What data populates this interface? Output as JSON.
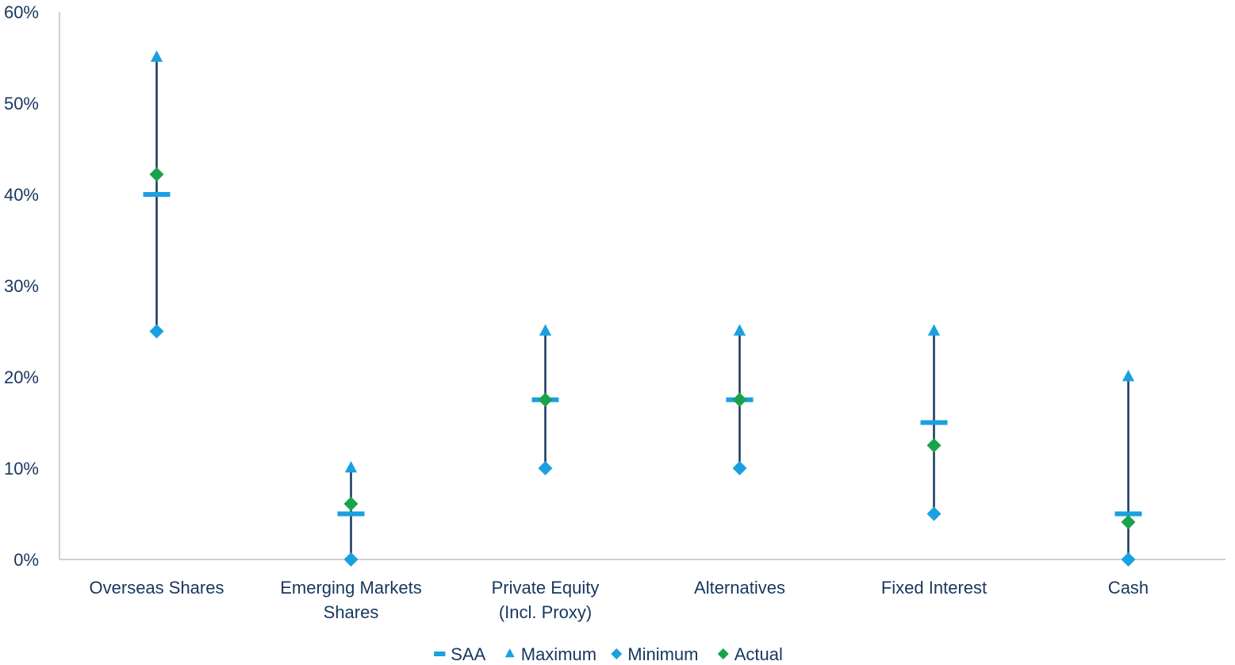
{
  "chart_data": {
    "type": "scatter",
    "categories": [
      [
        "Overseas Shares"
      ],
      [
        "Emerging Markets",
        "Shares"
      ],
      [
        "Private Equity",
        "(Incl. Proxy)"
      ],
      [
        "Alternatives"
      ],
      [
        "Fixed Interest"
      ],
      [
        "Cash"
      ]
    ],
    "series": [
      {
        "name": "SAA",
        "values": [
          40,
          5,
          17.5,
          17.5,
          15,
          5
        ]
      },
      {
        "name": "Maximum",
        "values": [
          55,
          10,
          25,
          25,
          25,
          20
        ]
      },
      {
        "name": "Minimum",
        "values": [
          25,
          0,
          10,
          10,
          5,
          0
        ]
      },
      {
        "name": "Actual",
        "values": [
          42.2,
          6.1,
          17.5,
          17.5,
          12.5,
          4.1
        ]
      }
    ],
    "yticks": [
      "0%",
      "10%",
      "20%",
      "30%",
      "40%",
      "50%",
      "60%"
    ],
    "ylim": [
      0,
      60
    ],
    "grid": false,
    "legend_position": "bottom",
    "colors": {
      "SAA": "#1aa0e0",
      "Maximum": "#1aa0e0",
      "Minimum": "#1aa0e0",
      "Actual": "#1aa34a",
      "range_line": "#17375e",
      "axis": "#bfbfbf",
      "text": "#17375e"
    }
  }
}
